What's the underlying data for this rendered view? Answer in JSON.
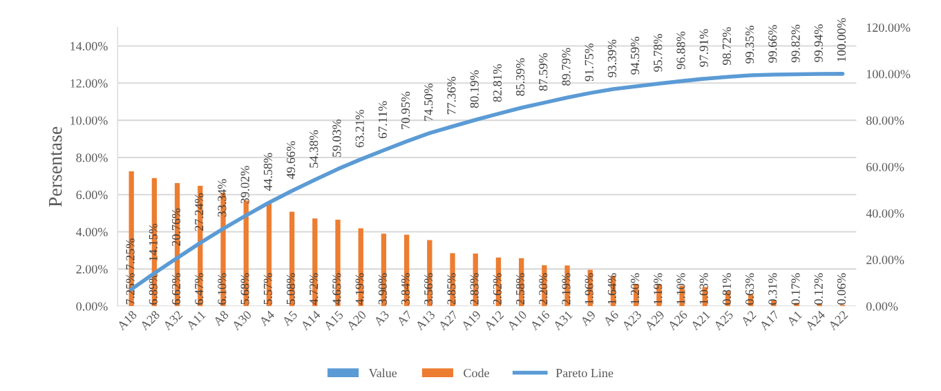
{
  "chart_data": {
    "type": "bar",
    "ylabel": "Persentase",
    "categories": [
      "A18",
      "A28",
      "A32",
      "A11",
      "A8",
      "A30",
      "A4",
      "A5",
      "A14",
      "A15",
      "A20",
      "A3",
      "A7",
      "A13",
      "A27",
      "A19",
      "A12",
      "A10",
      "A16",
      "A31",
      "A9",
      "A6",
      "A23",
      "A29",
      "A26",
      "A21",
      "A25",
      "A2",
      "A17",
      "A1",
      "A24",
      "A22"
    ],
    "series": [
      {
        "name": "Value",
        "color": "#5b9bd5",
        "values": [
          null,
          null,
          null,
          null,
          null,
          null,
          null,
          null,
          null,
          null,
          null,
          null,
          null,
          null,
          null,
          null,
          null,
          null,
          null,
          null,
          null,
          null,
          null,
          null,
          null,
          null,
          null,
          null,
          null,
          null,
          null,
          null
        ]
      },
      {
        "name": "Code",
        "color": "#ed7d31",
        "values": [
          7.25,
          6.89,
          6.62,
          6.47,
          6.1,
          5.68,
          5.57,
          5.08,
          4.72,
          4.65,
          4.19,
          3.9,
          3.84,
          3.56,
          2.85,
          2.83,
          2.62,
          2.58,
          2.2,
          2.19,
          1.96,
          1.64,
          1.2,
          1.19,
          1.1,
          1.03,
          0.81,
          0.63,
          0.31,
          0.17,
          0.12,
          0.06
        ],
        "value_labels": [
          "7.25%",
          "6.89%",
          "6.62%",
          "6.47%",
          "6.10%",
          "5.68%",
          "5.57%",
          "5.08%",
          "4.72%",
          "4.65%",
          "4.19%",
          "3.90%",
          "3.84%",
          "3.56%",
          "2.85%",
          "2.83%",
          "2.62%",
          "2.58%",
          "2.20%",
          "2.19%",
          "1.96%",
          "1.64%",
          "1.20%",
          "1.19%",
          "1.10%",
          "1.03%",
          "0.81%",
          "0.63%",
          "0.31%",
          "0.17%",
          "0.12%",
          "0.06%"
        ]
      },
      {
        "name": "Pareto Line",
        "type": "line",
        "axis": "y2",
        "color": "#5b9bd5",
        "values": [
          7.25,
          14.15,
          20.76,
          27.24,
          33.34,
          39.02,
          44.58,
          49.66,
          54.38,
          59.03,
          63.21,
          67.11,
          70.95,
          74.5,
          77.36,
          80.19,
          82.81,
          85.39,
          87.59,
          89.79,
          91.75,
          93.39,
          94.59,
          95.78,
          96.88,
          97.91,
          98.72,
          99.35,
          99.66,
          99.82,
          99.94,
          100.0
        ],
        "value_labels": [
          "7.25%",
          "14.15%",
          "20.76%",
          "27.24%",
          "33.34%",
          "39.02%",
          "44.58%",
          "49.66%",
          "54.38%",
          "59.03%",
          "63.21%",
          "67.11%",
          "70.95%",
          "74.50%",
          "77.36%",
          "80.19%",
          "82.81%",
          "85.39%",
          "87.59%",
          "89.79%",
          "91.75%",
          "93.39%",
          "94.59%",
          "95.78%",
          "96.88%",
          "97.91%",
          "98.72%",
          "99.35%",
          "99.66%",
          "99.82%",
          "99.94%",
          "100.00%"
        ]
      }
    ],
    "ylim": [
      0,
      15
    ],
    "yticks": [
      {
        "value": 0,
        "label": "0.00%"
      },
      {
        "value": 2,
        "label": "2.00%"
      },
      {
        "value": 4,
        "label": "4.00%"
      },
      {
        "value": 6,
        "label": "6.00%"
      },
      {
        "value": 8,
        "label": "8.00%"
      },
      {
        "value": 10,
        "label": "10.00%"
      },
      {
        "value": 12,
        "label": "12.00%"
      },
      {
        "value": 14,
        "label": "14.00%"
      }
    ],
    "y2lim": [
      0,
      120
    ],
    "y2ticks": [
      {
        "value": 0,
        "label": "0.00%"
      },
      {
        "value": 20,
        "label": "20.00%"
      },
      {
        "value": 40,
        "label": "40.00%"
      },
      {
        "value": 60,
        "label": "60.00%"
      },
      {
        "value": 80,
        "label": "80.00%"
      },
      {
        "value": 100,
        "label": "100.00%"
      },
      {
        "value": 120,
        "label": "120.00%"
      }
    ],
    "grid": "y",
    "legend": "bottom",
    "line_style": "solid",
    "marker": "none"
  }
}
